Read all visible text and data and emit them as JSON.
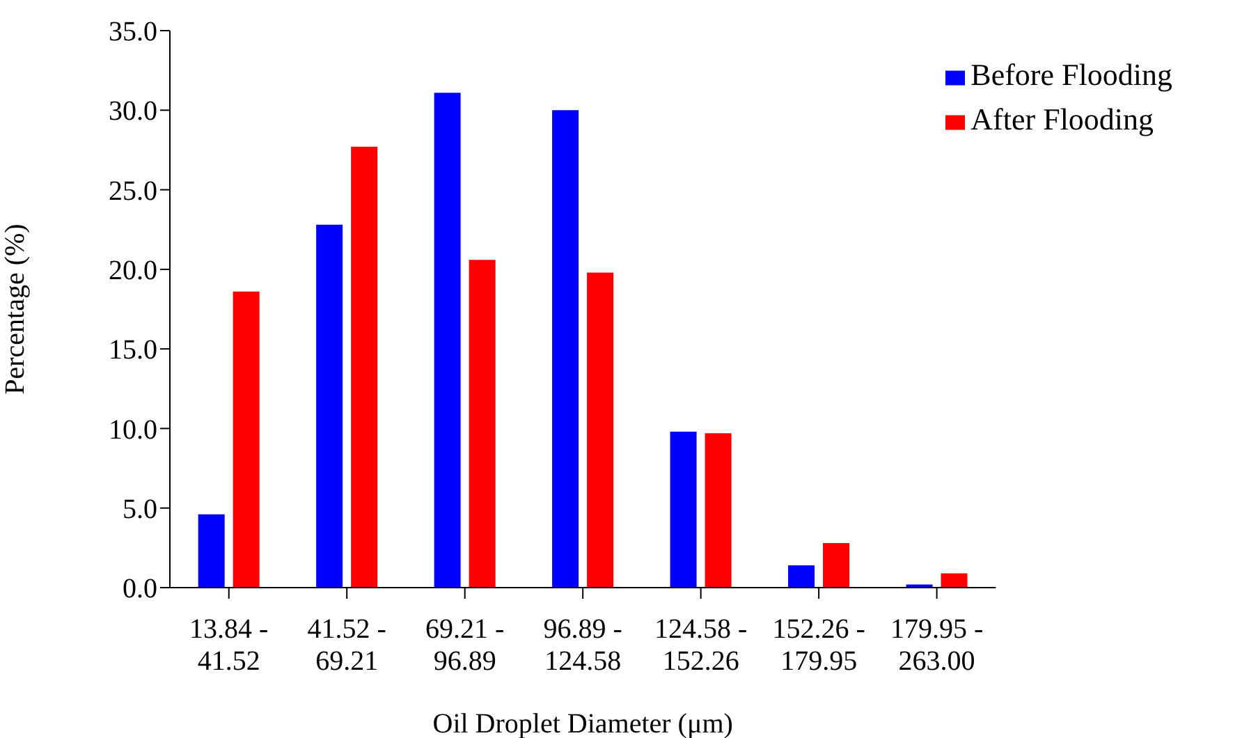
{
  "chart_data": {
    "type": "bar",
    "xlabel": "Oil Droplet Diameter (μm)",
    "ylabel": "Percentage (%)",
    "categories": [
      "13.84 - 41.52",
      "41.52 - 69.21",
      "69.21 - 96.89",
      "96.89 - 124.58",
      "124.58 - 152.26",
      "152.26 - 179.95",
      "179.95 - 263.00"
    ],
    "series": [
      {
        "name": "Before Flooding",
        "color": "#0000ff",
        "values": [
          4.6,
          22.8,
          31.1,
          30.0,
          9.8,
          1.4,
          0.2
        ]
      },
      {
        "name": "After Flooding",
        "color": "#ff0000",
        "values": [
          18.6,
          27.7,
          20.6,
          19.8,
          9.7,
          2.8,
          0.9
        ]
      }
    ],
    "ylim": [
      0,
      35
    ],
    "yticks": [
      {
        "value": 0,
        "label": "0.0"
      },
      {
        "value": 5,
        "label": "5.0"
      },
      {
        "value": 10,
        "label": "10.0"
      },
      {
        "value": 15,
        "label": "15.0"
      },
      {
        "value": 20,
        "label": "20.0"
      },
      {
        "value": 25,
        "label": "25.0"
      },
      {
        "value": 30,
        "label": "30.0"
      },
      {
        "value": 35,
        "label": "35.0"
      }
    ],
    "grid": false,
    "legend": "top right"
  }
}
